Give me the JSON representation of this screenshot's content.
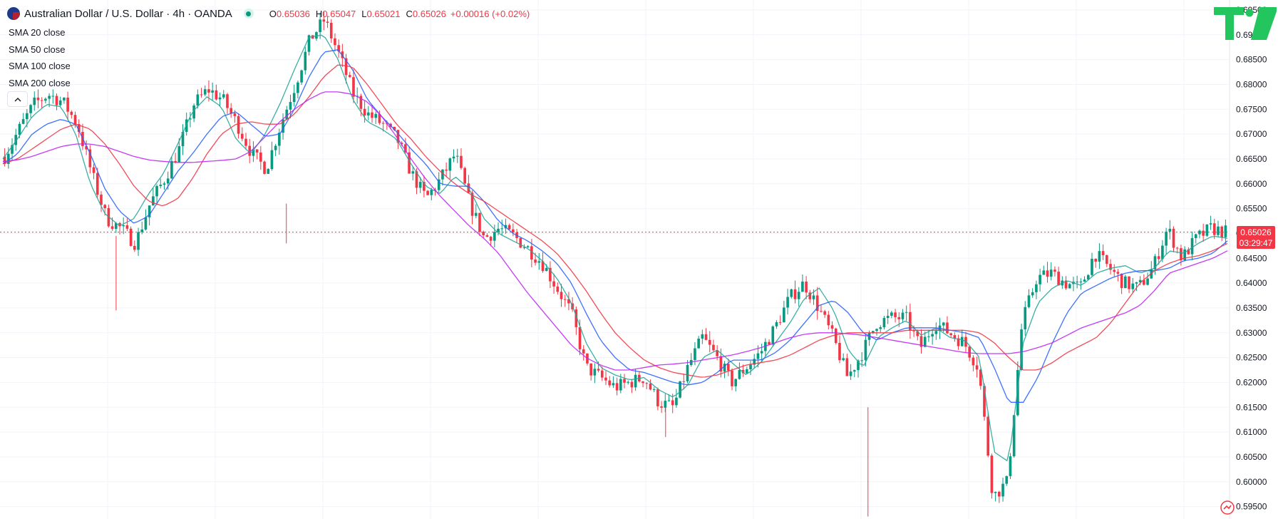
{
  "header": {
    "symbol_title": "Australian Dollar / U.S. Dollar · 4h · OANDA",
    "open_label": "O",
    "open": "0.65036",
    "high_label": "H",
    "high": "0.65047",
    "low_label": "L",
    "low": "0.65021",
    "close_label": "C",
    "close": "0.65026",
    "change": "+0.00016 (+0.02%)"
  },
  "studies": [
    {
      "label": "SMA 20 close",
      "color": "#26a69a"
    },
    {
      "label": "SMA 50 close",
      "color": "#2962ff"
    },
    {
      "label": "SMA 100 close",
      "color": "#f23645"
    },
    {
      "label": "SMA 200 close",
      "color": "#c026f5"
    }
  ],
  "price_tag": {
    "price": "0.65026",
    "countdown": "03:29:47"
  },
  "colors": {
    "up": "#089981",
    "down": "#f23645",
    "grid": "#f0f3fa",
    "text": "#131722",
    "logo": "#22c55e"
  },
  "icons": {
    "flag": "aud-usd-flag-icon",
    "status": "market-open-dot-icon",
    "collapse": "chevron-up-icon",
    "logo": "tradingview-logo-icon",
    "small_logo": "tradingview-small-logo-icon"
  },
  "chart_data": {
    "type": "candlestick",
    "symbol": "AUD/USD",
    "timeframe": "4h",
    "y_ticks": [
      "0.69500",
      "0.69000",
      "0.68500",
      "0.68000",
      "0.67500",
      "0.67000",
      "0.66500",
      "0.66000",
      "0.65500",
      "0.65000",
      "0.64500",
      "0.64000",
      "0.63500",
      "0.63000",
      "0.62500",
      "0.62000",
      "0.61500",
      "0.61000",
      "0.60500",
      "0.60000",
      "0.59500"
    ],
    "ylim": [
      0.5925,
      0.697
    ],
    "current_price": 0.65026,
    "series": [
      {
        "name": "SMA 20 close",
        "values": [
          0.665,
          0.669,
          0.6735,
          0.676,
          0.6755,
          0.67,
          0.66,
          0.654,
          0.6515,
          0.653,
          0.658,
          0.662,
          0.668,
          0.6745,
          0.6775,
          0.6755,
          0.669,
          0.666,
          0.67,
          0.676,
          0.683,
          0.6895,
          0.69,
          0.685,
          0.677,
          0.6725,
          0.671,
          0.669,
          0.664,
          0.6595,
          0.658,
          0.6615,
          0.659,
          0.653,
          0.65,
          0.6485,
          0.647,
          0.6445,
          0.641,
          0.636,
          0.628,
          0.623,
          0.6215,
          0.6205,
          0.621,
          0.6185,
          0.617,
          0.6195,
          0.625,
          0.6265,
          0.624,
          0.6215,
          0.624,
          0.628,
          0.632,
          0.637,
          0.639,
          0.6345,
          0.6265,
          0.623,
          0.629,
          0.631,
          0.6325,
          0.6295,
          0.631,
          0.629,
          0.6285,
          0.625,
          0.606,
          0.604,
          0.628,
          0.636,
          0.639,
          0.6405,
          0.6395,
          0.642,
          0.643,
          0.6435,
          0.642,
          0.643,
          0.6465,
          0.646,
          0.648,
          0.6495,
          0.649
        ]
      },
      {
        "name": "SMA 50 close",
        "values": [
          0.664,
          0.666,
          0.67,
          0.672,
          0.673,
          0.672,
          0.666,
          0.659,
          0.6545,
          0.652,
          0.6535,
          0.658,
          0.6625,
          0.666,
          0.67,
          0.6735,
          0.6745,
          0.672,
          0.6695,
          0.67,
          0.675,
          0.6815,
          0.6865,
          0.687,
          0.683,
          0.677,
          0.6735,
          0.6705,
          0.667,
          0.664,
          0.66,
          0.6595,
          0.6595,
          0.6565,
          0.6525,
          0.65,
          0.6485,
          0.6465,
          0.644,
          0.64,
          0.634,
          0.6285,
          0.625,
          0.6225,
          0.622,
          0.621,
          0.62,
          0.6195,
          0.62,
          0.622,
          0.6245,
          0.6245,
          0.6245,
          0.626,
          0.6285,
          0.632,
          0.6355,
          0.6365,
          0.634,
          0.63,
          0.6285,
          0.63,
          0.631,
          0.631,
          0.631,
          0.6305,
          0.63,
          0.629,
          0.623,
          0.616,
          0.616,
          0.621,
          0.628,
          0.634,
          0.638,
          0.6395,
          0.641,
          0.642,
          0.6425,
          0.6425,
          0.643,
          0.6445,
          0.645,
          0.646,
          0.6485
        ]
      },
      {
        "name": "SMA 100 close",
        "values": [
          0.664,
          0.665,
          0.667,
          0.669,
          0.671,
          0.672,
          0.671,
          0.668,
          0.664,
          0.6595,
          0.6565,
          0.6555,
          0.657,
          0.661,
          0.666,
          0.67,
          0.672,
          0.6725,
          0.672,
          0.672,
          0.674,
          0.6775,
          0.6815,
          0.684,
          0.6835,
          0.68,
          0.676,
          0.672,
          0.669,
          0.6655,
          0.6625,
          0.66,
          0.658,
          0.6565,
          0.6545,
          0.6525,
          0.6505,
          0.6485,
          0.646,
          0.6425,
          0.6385,
          0.634,
          0.63,
          0.627,
          0.6245,
          0.623,
          0.622,
          0.6215,
          0.621,
          0.6215,
          0.6225,
          0.6235,
          0.624,
          0.6245,
          0.6255,
          0.627,
          0.6285,
          0.6295,
          0.63,
          0.63,
          0.63,
          0.63,
          0.6305,
          0.6305,
          0.6305,
          0.6305,
          0.6305,
          0.63,
          0.628,
          0.625,
          0.6225,
          0.6225,
          0.624,
          0.626,
          0.6275,
          0.629,
          0.632,
          0.636,
          0.64,
          0.6425,
          0.644,
          0.645,
          0.6455,
          0.6465,
          0.648
        ]
      },
      {
        "name": "SMA 200 close",
        "values": [
          0.6645,
          0.6648,
          0.6655,
          0.6665,
          0.6675,
          0.668,
          0.668,
          0.6675,
          0.6665,
          0.6655,
          0.6648,
          0.6645,
          0.6643,
          0.6643,
          0.6645,
          0.6647,
          0.665,
          0.6665,
          0.6695,
          0.6725,
          0.675,
          0.677,
          0.6785,
          0.6785,
          0.678,
          0.6765,
          0.6735,
          0.6695,
          0.665,
          0.661,
          0.6575,
          0.6545,
          0.6515,
          0.649,
          0.646,
          0.642,
          0.638,
          0.6345,
          0.631,
          0.6275,
          0.625,
          0.6235,
          0.6225,
          0.6225,
          0.623,
          0.6235,
          0.6237,
          0.624,
          0.6245,
          0.625,
          0.6255,
          0.6262,
          0.627,
          0.628,
          0.629,
          0.6297,
          0.63,
          0.63,
          0.6298,
          0.6295,
          0.629,
          0.6285,
          0.628,
          0.6275,
          0.627,
          0.6265,
          0.626,
          0.6258,
          0.6258,
          0.6258,
          0.6262,
          0.627,
          0.628,
          0.6295,
          0.631,
          0.632,
          0.633,
          0.634,
          0.6355,
          0.6385,
          0.642,
          0.643,
          0.644,
          0.645,
          0.6465
        ]
      },
      {
        "name": "Price path",
        "values": [
          0.6655,
          0.671,
          0.676,
          0.678,
          0.6765,
          0.672,
          0.662,
          0.653,
          0.651,
          0.648,
          0.656,
          0.661,
          0.667,
          0.676,
          0.679,
          0.677,
          0.672,
          0.666,
          0.663,
          0.672,
          0.68,
          0.689,
          0.693,
          0.686,
          0.678,
          0.674,
          0.672,
          0.669,
          0.662,
          0.657,
          0.661,
          0.666,
          0.656,
          0.649,
          0.651,
          0.6495,
          0.647,
          0.644,
          0.639,
          0.634,
          0.623,
          0.621,
          0.619,
          0.62,
          0.621,
          0.616,
          0.615,
          0.623,
          0.629,
          0.625,
          0.62,
          0.623,
          0.626,
          0.631,
          0.637,
          0.64,
          0.635,
          0.629,
          0.621,
          0.626,
          0.632,
          0.633,
          0.633,
          0.627,
          0.632,
          0.63,
          0.628,
          0.623,
          0.597,
          0.6,
          0.632,
          0.641,
          0.642,
          0.64,
          0.639,
          0.646,
          0.643,
          0.64,
          0.639,
          0.643,
          0.651,
          0.645,
          0.649,
          0.651,
          0.6503
        ]
      }
    ]
  }
}
